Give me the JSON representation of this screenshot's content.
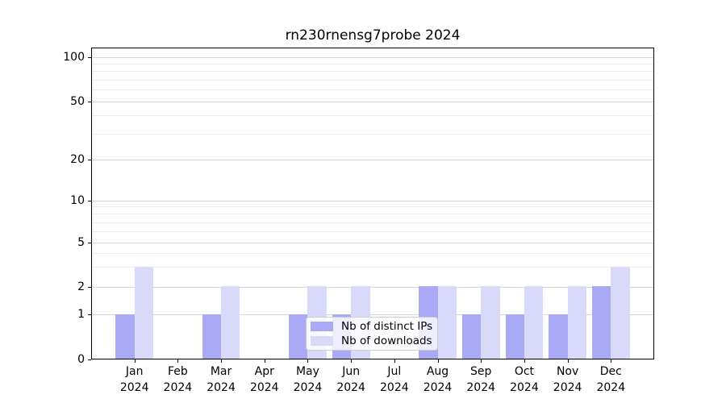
{
  "title": "rn230rnensg7probe 2024",
  "chart_data": {
    "type": "bar",
    "title": "rn230rnensg7probe 2024",
    "categories": [
      "Jan 2024",
      "Feb 2024",
      "Mar 2024",
      "Apr 2024",
      "May 2024",
      "Jun 2024",
      "Jul 2024",
      "Aug 2024",
      "Sep 2024",
      "Oct 2024",
      "Nov 2024",
      "Dec 2024"
    ],
    "series": [
      {
        "name": "Nb of distinct IPs",
        "color": "#a9a9f6",
        "values": [
          1,
          0,
          1,
          0,
          1,
          1,
          0,
          2,
          1,
          1,
          1,
          2
        ]
      },
      {
        "name": "Nb of downloads",
        "color": "#d9d9fa",
        "values": [
          3,
          0,
          2,
          0,
          2,
          2,
          0,
          2,
          2,
          2,
          2,
          3
        ]
      }
    ],
    "xlabel": "",
    "ylabel": "",
    "y_axis": {
      "scale": "symlog",
      "ticks": [
        0,
        1,
        2,
        5,
        10,
        20,
        50,
        100
      ],
      "minor_gridlines": [
        3,
        4,
        6,
        7,
        8,
        9,
        30,
        40,
        60,
        70,
        80,
        90
      ],
      "range": [
        0,
        120
      ]
    },
    "grid": true,
    "legend_position": "lower center",
    "colors": {
      "major_grid": "#d4d4d4",
      "minor_grid": "#ebebeb",
      "axis": "#000000",
      "background": "#ffffff"
    }
  }
}
